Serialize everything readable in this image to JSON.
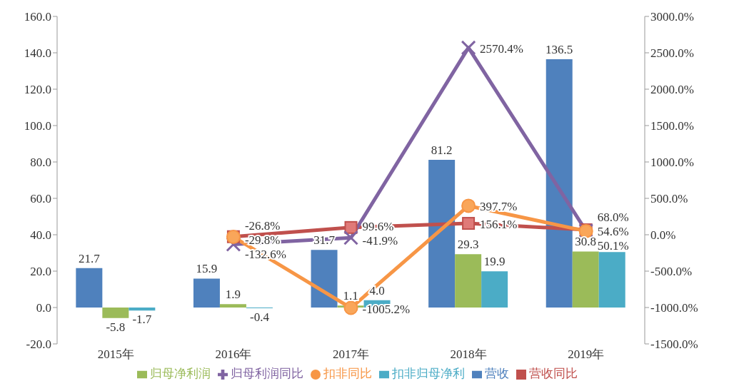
{
  "chart_data": {
    "type": "bar",
    "categories": [
      "2015年",
      "2016年",
      "2017年",
      "2018年",
      "2019年"
    ],
    "series": [
      {
        "name": "营收",
        "color": "#4f81bd",
        "values": [
          21.7,
          15.9,
          31.7,
          81.2,
          136.5
        ],
        "value_labels": [
          "21.7",
          "15.9",
          "31.7",
          "81.2",
          "136.5"
        ]
      },
      {
        "name": "归母净利润",
        "color": "#9bbb59",
        "values": [
          -5.8,
          1.9,
          1.1,
          29.3,
          30.8
        ],
        "value_labels": [
          "-5.8",
          "1.9",
          "1.1",
          "29.3",
          "30.8"
        ]
      },
      {
        "name": "扣非归母净利",
        "color": "#4bacc6",
        "values": [
          -1.7,
          -0.4,
          4.0,
          19.9,
          30.5
        ],
        "value_labels": [
          "-1.7",
          "-0.4",
          "4.0",
          "19.9",
          null
        ]
      },
      {
        "name": "营收同比",
        "type": "line",
        "axis": "y2",
        "marker": "square",
        "color": "#c0504d",
        "values": [
          null,
          -26.8,
          99.6,
          156.1,
          68.0
        ],
        "value_labels": [
          null,
          "-26.8%",
          "99.6%",
          "156.1%",
          "68.0%"
        ]
      },
      {
        "name": "归母利润同比",
        "type": "line",
        "axis": "y2",
        "marker": "cross",
        "color": "#8064a2",
        "values": [
          null,
          -132.6,
          -41.9,
          2570.4,
          54.6
        ],
        "value_labels": [
          null,
          "-132.6%",
          "-41.9%",
          "2570.4%",
          "54.6%"
        ]
      },
      {
        "name": "扣非同比",
        "type": "line",
        "axis": "y2",
        "marker": "circle",
        "color": "#f79646",
        "values": [
          null,
          -29.8,
          -1005.2,
          397.7,
          50.1
        ],
        "value_labels": [
          null,
          "-29.8%",
          "-1005.2%",
          "397.7%",
          "50.1%"
        ]
      }
    ],
    "ylim": [
      -20,
      160
    ],
    "yticks": [
      {
        "value": -20,
        "label": "-20.0"
      },
      {
        "value": 0,
        "label": "0.0"
      },
      {
        "value": 20,
        "label": "20.0"
      },
      {
        "value": 40,
        "label": "40.0"
      },
      {
        "value": 60,
        "label": "60.0"
      },
      {
        "value": 80,
        "label": "80.0"
      },
      {
        "value": 100,
        "label": "100.0"
      },
      {
        "value": 120,
        "label": "120.0"
      },
      {
        "value": 140,
        "label": "140.0"
      },
      {
        "value": 160,
        "label": "160.0"
      }
    ],
    "y2lim": [
      -1500,
      3000
    ],
    "y2ticks": [
      {
        "value": -1500,
        "label": "-1500.0%"
      },
      {
        "value": -1000,
        "label": "-1000.0%"
      },
      {
        "value": -500,
        "label": "-500.0%"
      },
      {
        "value": 0,
        "label": "0.0%"
      },
      {
        "value": 500,
        "label": "500.0%"
      },
      {
        "value": 1000,
        "label": "1000.0%"
      },
      {
        "value": 1500,
        "label": "1500.0%"
      },
      {
        "value": 2000,
        "label": "2000.0%"
      },
      {
        "value": 2500,
        "label": "2500.0%"
      },
      {
        "value": 3000,
        "label": "3000.0%"
      }
    ],
    "grid": false,
    "legend": "bottom"
  }
}
